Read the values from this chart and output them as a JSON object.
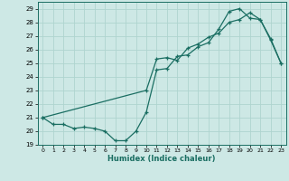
{
  "xlabel": "Humidex (Indice chaleur)",
  "ylabel": "",
  "bg_color": "#cde8e5",
  "grid_color": "#afd4cf",
  "line_color": "#1a6e62",
  "xlim": [
    -0.5,
    23.5
  ],
  "ylim": [
    19,
    29.5
  ],
  "yticks": [
    19,
    20,
    21,
    22,
    23,
    24,
    25,
    26,
    27,
    28,
    29
  ],
  "xticks": [
    0,
    1,
    2,
    3,
    4,
    5,
    6,
    7,
    8,
    9,
    10,
    11,
    12,
    13,
    14,
    15,
    16,
    17,
    18,
    19,
    20,
    21,
    22,
    23
  ],
  "series1_x": [
    0,
    1,
    2,
    3,
    4,
    5,
    6,
    7,
    8,
    9,
    10,
    11,
    12,
    13,
    14,
    15,
    16,
    17,
    18,
    19,
    20,
    21,
    22,
    23
  ],
  "series1_y": [
    21.0,
    20.5,
    20.5,
    20.2,
    20.3,
    20.2,
    20.0,
    19.3,
    19.3,
    20.0,
    21.4,
    24.5,
    24.6,
    25.5,
    25.6,
    26.2,
    26.5,
    27.5,
    28.8,
    29.0,
    28.3,
    28.2,
    26.8,
    25.0
  ],
  "series2_x": [
    0,
    10,
    11,
    12,
    13,
    14,
    15,
    16,
    17,
    18,
    19,
    20,
    21,
    22,
    23
  ],
  "series2_y": [
    21.0,
    23.0,
    25.3,
    25.4,
    25.2,
    26.1,
    26.4,
    26.9,
    27.2,
    28.0,
    28.2,
    28.7,
    28.2,
    26.7,
    25.0
  ]
}
